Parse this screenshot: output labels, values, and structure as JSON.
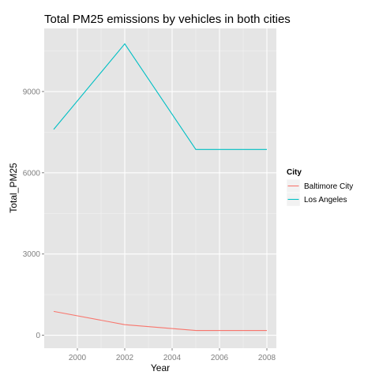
{
  "chart_data": {
    "type": "line",
    "title": "Total PM25 emissions by vehicles in both cities",
    "xlabel": "Year",
    "ylabel": "Total_PM25",
    "xlim": [
      1998.6,
      2008.4
    ],
    "ylim": [
      -480,
      11330
    ],
    "x_ticks": [
      2000,
      2002,
      2004,
      2006,
      2008
    ],
    "y_ticks": [
      0,
      3000,
      6000,
      9000
    ],
    "grid": true,
    "legend": {
      "title": "City",
      "placement": "right"
    },
    "series": [
      {
        "name": "Baltimore City",
        "color": "#F8766D",
        "x": [
          1999,
          2002,
          2005,
          2008
        ],
        "values": [
          880,
          390,
          175,
          175
        ]
      },
      {
        "name": "Los Angeles",
        "color": "#00BFC4",
        "x": [
          1999,
          2002,
          2005,
          2008
        ],
        "values": [
          7600,
          10760,
          6860,
          6860
        ]
      }
    ]
  }
}
